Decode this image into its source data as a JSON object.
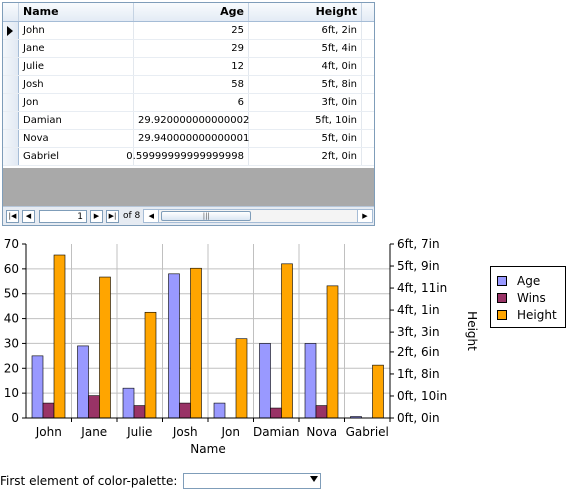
{
  "grid": {
    "columns": [
      "Name",
      "Age",
      "Height"
    ],
    "rows": [
      {
        "name": "John",
        "age": "25",
        "height": "6ft,  2in"
      },
      {
        "name": "Jane",
        "age": "29",
        "height": "5ft,  4in"
      },
      {
        "name": "Julie",
        "age": "12",
        "height": "4ft,  0in"
      },
      {
        "name": "Josh",
        "age": "58",
        "height": "5ft,  8in"
      },
      {
        "name": "Jon",
        "age": "6",
        "height": "3ft,  0in"
      },
      {
        "name": "Damian",
        "age": "29.920000000000002",
        "height": "5ft,  10in"
      },
      {
        "name": "Nova",
        "age": "29.940000000000001",
        "height": "5ft,  0in"
      },
      {
        "name": "Gabriel",
        "age": "0.59999999999999998",
        "height": "2ft,  0in"
      }
    ],
    "pager": {
      "current_page": "1",
      "of_label": "of 8",
      "first_icon": "first-page-icon",
      "prev_icon": "prev-page-icon",
      "next_icon": "next-page-icon",
      "last_icon": "last-page-icon"
    },
    "scrollbar": {
      "thumb_grip": "|||"
    }
  },
  "chart_data": {
    "type": "bar",
    "categories": [
      "John",
      "Jane",
      "Julie",
      "Josh",
      "Jon",
      "Damian",
      "Nova",
      "Gabriel"
    ],
    "series": [
      {
        "name": "Age",
        "color": "#9999ff",
        "axis": "left",
        "values": [
          25,
          29,
          12,
          58,
          6,
          30,
          30,
          0.6
        ]
      },
      {
        "name": "Wins",
        "color": "#993366",
        "axis": "left",
        "values": [
          6,
          9,
          5,
          6,
          0,
          4,
          5,
          0
        ]
      },
      {
        "name": "Height",
        "color": "#ffa500",
        "axis": "right",
        "values": [
          74,
          64,
          48,
          68,
          36,
          70,
          60,
          24
        ]
      }
    ],
    "xlabel": "Name",
    "ylabel_right": "Height",
    "ylim_left": [
      0,
      70
    ],
    "left_ticks": [
      "0",
      "10",
      "20",
      "30",
      "40",
      "50",
      "60",
      "70"
    ],
    "ylim_right_inches": [
      0,
      79
    ],
    "right_ticks": [
      {
        "label": "0ft,  0in",
        "inches": 0
      },
      {
        "label": "0ft, 10in",
        "inches": 10
      },
      {
        "label": "1ft,  8in",
        "inches": 20
      },
      {
        "label": "2ft,  6in",
        "inches": 30
      },
      {
        "label": "3ft,  3in",
        "inches": 39
      },
      {
        "label": "4ft,  1in",
        "inches": 49
      },
      {
        "label": "4ft, 11in",
        "inches": 59
      },
      {
        "label": "5ft,  9in",
        "inches": 69
      },
      {
        "label": "6ft,  7in",
        "inches": 79
      }
    ],
    "grid": true,
    "legend_position": "right"
  },
  "palette": {
    "label": "First element of color-palette:",
    "value": "",
    "dropdown_icon": "chevron-down-icon"
  }
}
